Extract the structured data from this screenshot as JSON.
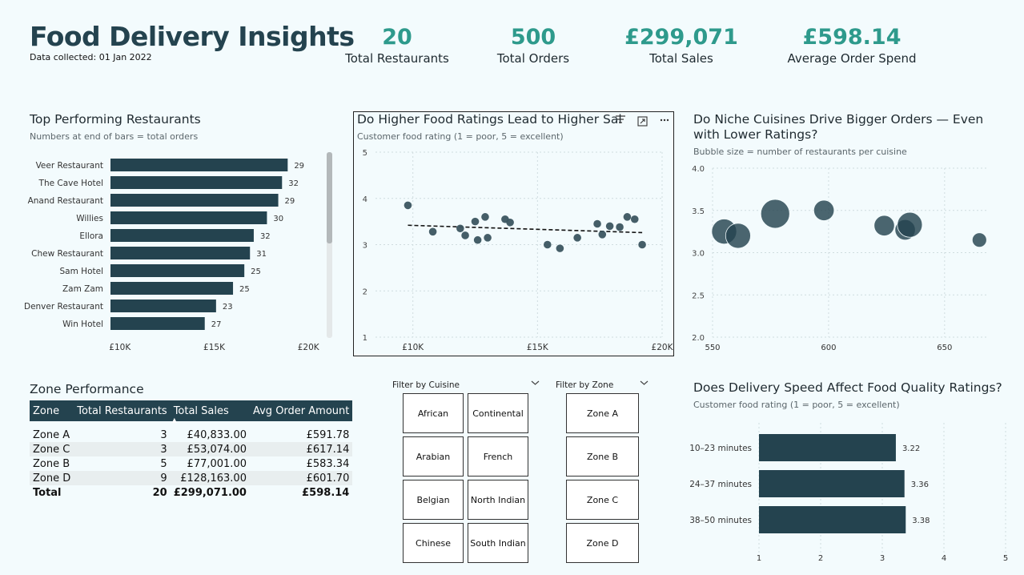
{
  "header": {
    "title": "Food Delivery Insights",
    "subtitle": "Data collected: 01 Jan 2022"
  },
  "kpis": [
    {
      "value": "20",
      "label": "Total Restaurants"
    },
    {
      "value": "500",
      "label": "Total Orders"
    },
    {
      "value": "£299,071",
      "label": "Total Sales"
    },
    {
      "value": "£598.14",
      "label": "Average Order Spend"
    }
  ],
  "colors": {
    "bar": "#24434f",
    "accent": "#2e9a8c",
    "bubble": "#24434f",
    "background": "#f3fbfd"
  },
  "top_restaurants": {
    "title": "Top Performing Restaurants",
    "subtitle": "Numbers at end of bars = total orders"
  },
  "ratings_scatter": {
    "title": "Do Higher Food Ratings Lead to Higher Sal",
    "subtitle": "Customer food rating (1 = poor, 5 = excellent)",
    "icons": [
      "filter-icon",
      "focus-mode-icon",
      "more-options-icon"
    ]
  },
  "cuisine_bubble": {
    "title_line1": "Do Niche Cuisines Drive Bigger Orders — Even",
    "title_line2": "with Lower Ratings?",
    "subtitle": "Bubble size = number of restaurants per cuisine"
  },
  "delivery_speed": {
    "title": "Does Delivery Speed Affect Food Quality Ratings?",
    "subtitle": "Customer food rating (1 = poor, 5 = excellent)"
  },
  "zone_table": {
    "title": "Zone Performance",
    "headers": [
      "Zone",
      "Total Restaurants",
      "Total Sales",
      "Avg Order Amount"
    ],
    "sorted_column": "Total Sales",
    "rows": [
      [
        "Zone A",
        "3",
        "£40,833.00",
        "£591.78"
      ],
      [
        "Zone C",
        "3",
        "£53,074.00",
        "£617.14"
      ],
      [
        "Zone B",
        "5",
        "£77,001.00",
        "£583.34"
      ],
      [
        "Zone D",
        "9",
        "£128,163.00",
        "£601.70"
      ]
    ],
    "total": [
      "Total",
      "20",
      "£299,071.00",
      "£598.14"
    ]
  },
  "filters": {
    "cuisine_label": "Filter by Cuisine",
    "cuisines": [
      "African",
      "Continental",
      "Arabian",
      "French",
      "Belgian",
      "North Indian",
      "Chinese",
      "South Indian"
    ],
    "zone_label": "Filter by Zone",
    "zones": [
      "Zone A",
      "Zone B",
      "Zone C",
      "Zone D"
    ]
  },
  "chart_data": [
    {
      "type": "bar",
      "orientation": "horizontal",
      "categories": [
        "Veer Restaurant",
        "The Cave Hotel",
        "Anand Restaurant",
        "Willies",
        "Ellora",
        "Chew Restaurant",
        "Sam Hotel",
        "Zam Zam",
        "Denver Restaurant",
        "Win Hotel"
      ],
      "values": [
        18900,
        18600,
        18400,
        17800,
        17100,
        16900,
        16600,
        16000,
        15100,
        14500
      ],
      "data_labels": [
        "29",
        "32",
        "29",
        "30",
        "32",
        "31",
        "25",
        "25",
        "23",
        "27"
      ],
      "xticks": [
        "£10K",
        "£15K",
        "£20K"
      ],
      "xtick_values": [
        10000,
        15000,
        20000
      ],
      "xlim": [
        9500,
        20500
      ]
    },
    {
      "type": "scatter",
      "x": [
        9800,
        10800,
        11900,
        12100,
        12500,
        12600,
        12900,
        13000,
        13700,
        13900,
        15400,
        15900,
        16600,
        17400,
        17600,
        17900,
        18300,
        18600,
        18900,
        19200
      ],
      "y": [
        3.85,
        3.28,
        3.35,
        3.2,
        3.5,
        3.1,
        3.6,
        3.15,
        3.55,
        3.48,
        3.0,
        2.92,
        3.15,
        3.45,
        3.22,
        3.4,
        3.38,
        3.6,
        3.55,
        3.0
      ],
      "trendline": {
        "x": [
          9800,
          19200
        ],
        "y": [
          3.42,
          3.26
        ]
      },
      "xticks": [
        "£10K",
        "£15K",
        "£20K"
      ],
      "xtick_values": [
        10000,
        15000,
        20000
      ],
      "xlim": [
        8500,
        20000
      ],
      "yticks": [
        "1",
        "2",
        "3",
        "4",
        "5"
      ],
      "ylim": [
        1,
        5
      ]
    },
    {
      "type": "scatter",
      "subtype": "bubble",
      "points": [
        {
          "x": 555,
          "y": 3.25,
          "size": 3
        },
        {
          "x": 561,
          "y": 3.2,
          "size": 3
        },
        {
          "x": 577,
          "y": 3.46,
          "size": 4
        },
        {
          "x": 598,
          "y": 3.5,
          "size": 2
        },
        {
          "x": 624,
          "y": 3.32,
          "size": 2
        },
        {
          "x": 633,
          "y": 3.27,
          "size": 2
        },
        {
          "x": 635,
          "y": 3.33,
          "size": 3
        },
        {
          "x": 665,
          "y": 3.15,
          "size": 1
        }
      ],
      "xticks": [
        "550",
        "600",
        "650"
      ],
      "xtick_values": [
        550,
        600,
        650
      ],
      "xlim": [
        550,
        668
      ],
      "yticks": [
        "4.0",
        "3.5",
        "3.0",
        "2.5",
        "2.0"
      ],
      "ytick_values": [
        4.0,
        3.5,
        3.0,
        2.5,
        2.0
      ],
      "ylim": [
        2.0,
        4.0
      ]
    },
    {
      "type": "bar",
      "orientation": "horizontal",
      "categories": [
        "10–23 minutes",
        "24–37 minutes",
        "38–50 minutes"
      ],
      "values": [
        3.22,
        3.36,
        3.38
      ],
      "data_labels": [
        "3.22",
        "3.36",
        "3.38"
      ],
      "xticks": [
        "1",
        "2",
        "3",
        "4",
        "5"
      ],
      "xtick_values": [
        1,
        2,
        3,
        4,
        5
      ],
      "xlim": [
        1,
        5
      ]
    }
  ]
}
